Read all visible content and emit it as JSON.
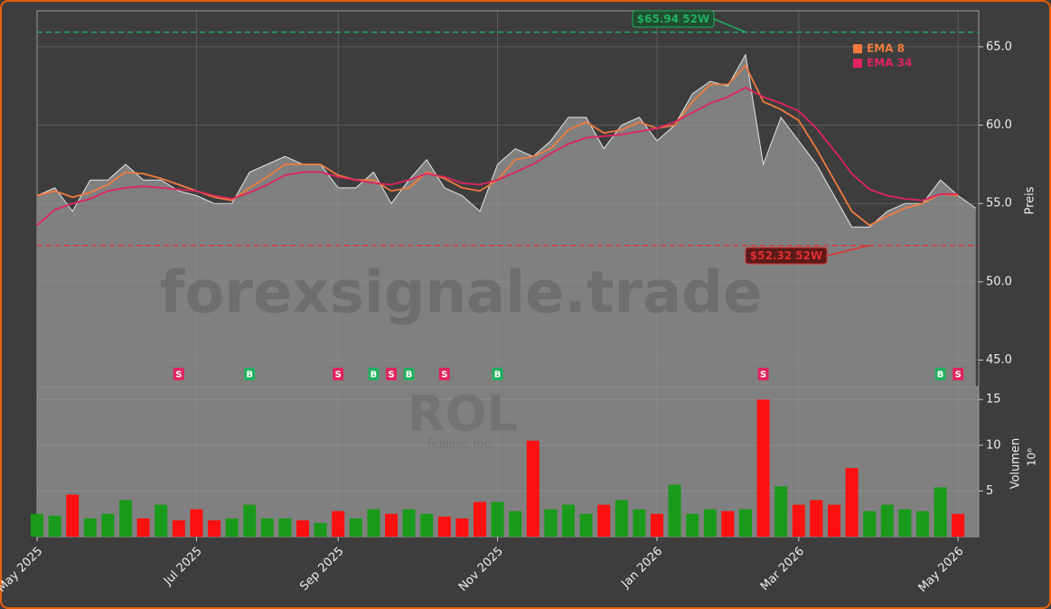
{
  "chart_data": {
    "type": "stock",
    "categories": [
      "May 2025",
      null,
      null,
      null,
      null,
      null,
      null,
      null,
      null,
      "Jul 2025",
      null,
      null,
      null,
      null,
      null,
      null,
      null,
      "Sep 2025",
      null,
      null,
      null,
      null,
      null,
      null,
      null,
      null,
      "Nov 2025",
      null,
      null,
      null,
      null,
      null,
      null,
      null,
      null,
      "Jan 2026",
      null,
      null,
      null,
      null,
      null,
      null,
      null,
      "Mar 2026",
      null,
      null,
      null,
      null,
      null,
      null,
      null,
      null,
      "May 2026",
      null
    ],
    "close": [
      55.5,
      56.0,
      54.5,
      56.5,
      56.5,
      57.5,
      56.5,
      56.5,
      55.8,
      55.5,
      55.0,
      55.0,
      57.0,
      57.5,
      58.0,
      57.5,
      57.5,
      56.0,
      56.0,
      57.0,
      55.0,
      56.5,
      57.8,
      56.0,
      55.5,
      54.5,
      57.5,
      58.5,
      58.0,
      59.0,
      60.5,
      60.5,
      58.5,
      60.0,
      60.5,
      59.0,
      60.0,
      62.0,
      62.8,
      62.5,
      64.5,
      57.5,
      60.5,
      59.0,
      57.5,
      55.5,
      53.5,
      53.5,
      54.5,
      55.0,
      55.0,
      56.5,
      55.5,
      54.7
    ],
    "close_color": "#e6e6e6",
    "area_color": "#808080",
    "series": [
      {
        "name": "EMA 8",
        "color": "#f07b3f",
        "values": [
          55.5,
          55.8,
          55.4,
          55.7,
          56.2,
          57.0,
          56.9,
          56.6,
          56.2,
          55.8,
          55.4,
          55.2,
          56.0,
          56.7,
          57.5,
          57.5,
          57.5,
          56.8,
          56.5,
          56.5,
          55.8,
          56.0,
          57.0,
          56.6,
          56.0,
          55.8,
          56.5,
          57.8,
          58.0,
          58.5,
          59.7,
          60.2,
          59.5,
          59.7,
          60.2,
          59.8,
          60.0,
          61.5,
          62.6,
          62.6,
          63.8,
          61.5,
          61.0,
          60.3,
          58.5,
          56.5,
          54.5,
          53.6,
          54.2,
          54.7,
          55.0,
          55.6,
          55.5,
          null
        ]
      },
      {
        "name": "EMA 34",
        "color": "#e0245e",
        "values": [
          53.6,
          54.6,
          55.0,
          55.3,
          55.8,
          56.0,
          56.1,
          56.0,
          55.9,
          55.8,
          55.5,
          55.3,
          55.7,
          56.2,
          56.8,
          57.0,
          57.0,
          56.7,
          56.5,
          56.3,
          56.2,
          56.5,
          56.9,
          56.7,
          56.3,
          56.2,
          56.5,
          57.0,
          57.5,
          58.2,
          58.8,
          59.2,
          59.3,
          59.4,
          59.6,
          59.8,
          60.2,
          60.8,
          61.4,
          61.8,
          62.4,
          61.8,
          61.4,
          60.9,
          59.8,
          58.4,
          56.9,
          55.9,
          55.5,
          55.3,
          55.2,
          55.6,
          55.6,
          null
        ]
      }
    ],
    "volume": [
      2.5,
      2.3,
      4.6,
      2.0,
      2.5,
      4.0,
      2.0,
      3.5,
      1.8,
      3.0,
      1.8,
      2.0,
      3.5,
      2.0,
      2.0,
      1.8,
      1.5,
      2.8,
      2.0,
      3.0,
      2.5,
      3.0,
      2.5,
      2.2,
      2.0,
      3.8,
      3.8,
      2.8,
      10.5,
      3.0,
      3.5,
      2.5,
      3.5,
      4.0,
      3.0,
      2.5,
      5.7,
      2.5,
      3.0,
      2.8,
      3.0,
      15.0,
      5.5,
      3.5,
      4.0,
      3.5,
      7.5,
      2.8,
      3.5,
      3.0,
      2.8,
      5.4,
      2.5,
      null
    ],
    "up_color": "#1a9a1a",
    "down_color": "#ff1010",
    "ylim": [
      43.3,
      67.3
    ],
    "yticks": [
      {
        "value": 45,
        "label": "45.0"
      },
      {
        "value": 50,
        "label": "50.0"
      },
      {
        "value": 55,
        "label": "55.0"
      },
      {
        "value": 60,
        "label": "60.0"
      },
      {
        "value": 65,
        "label": "65.0"
      }
    ],
    "y2lim": [
      0,
      16.4
    ],
    "y2ticks": [
      5,
      10,
      15
    ],
    "ylabel": "Preis",
    "y2label": "Volumen",
    "y2unit": "10⁶",
    "grid": true,
    "legend_position": "upper right",
    "high": {
      "value": 65.94,
      "label": "$65.94 52W",
      "at": 40,
      "color": "#22b060"
    },
    "low": {
      "value": 52.32,
      "label": "$52.32 52W",
      "at": 47,
      "color": "#e03030"
    },
    "signals": [
      {
        "at": 8,
        "label": "S"
      },
      {
        "at": 12,
        "label": "B"
      },
      {
        "at": 17,
        "label": "S"
      },
      {
        "at": 19,
        "label": "B"
      },
      {
        "at": 20,
        "label": "S"
      },
      {
        "at": 21,
        "label": "B"
      },
      {
        "at": 23,
        "label": "S"
      },
      {
        "at": 26,
        "label": "B"
      },
      {
        "at": 41,
        "label": "S"
      },
      {
        "at": 51,
        "label": "B"
      },
      {
        "at": 52,
        "label": "S"
      }
    ],
    "signal_colors": {
      "S": "#e0245e",
      "B": "#22b060"
    },
    "watermark": "forexsignale.trade",
    "ticker": "ROL",
    "company": "Rollins, Inc."
  }
}
